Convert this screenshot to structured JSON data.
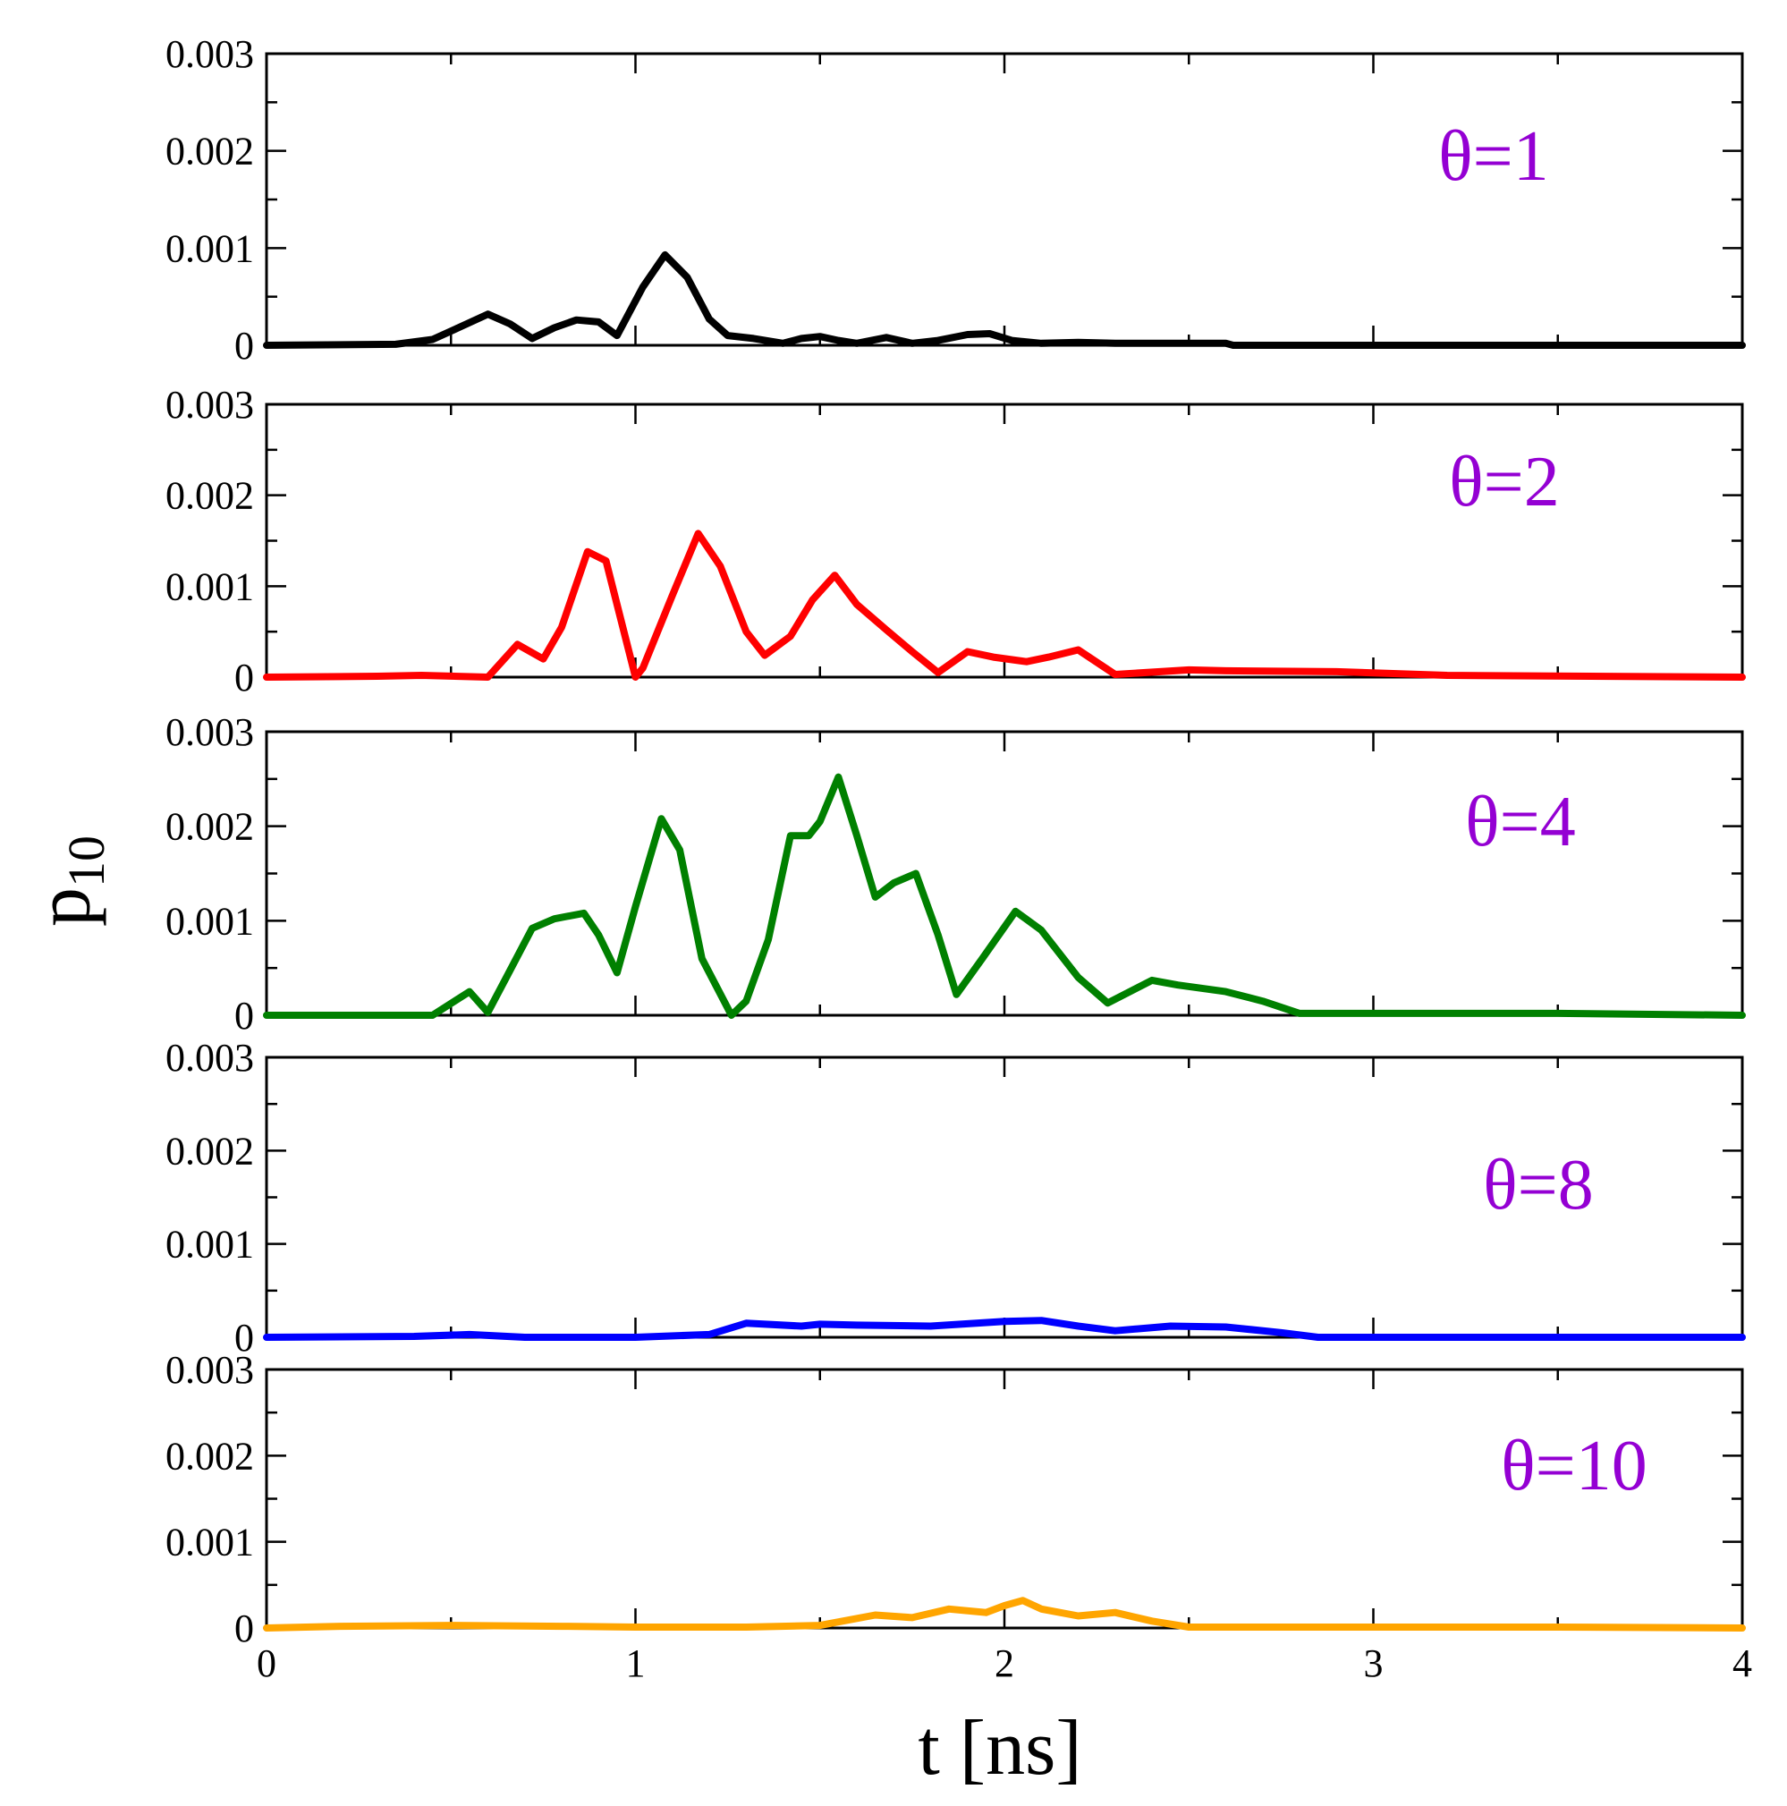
{
  "chart_data": {
    "type": "line",
    "layout": "stacked-panels",
    "xlabel": "t [ns]",
    "ylabel": "p",
    "ylabel_subscript": "10",
    "xlim": [
      0,
      4
    ],
    "x_ticks": [
      "0",
      "1",
      "2",
      "3",
      "4"
    ],
    "ylim": [
      0,
      0.003
    ],
    "y_ticks": [
      "0",
      "0.001",
      "0.002",
      "0.003"
    ],
    "label_color": "#9400d3",
    "panels": [
      {
        "label": "θ=1",
        "color": "#000000",
        "x": [
          0,
          0.35,
          0.45,
          0.52,
          0.6,
          0.66,
          0.72,
          0.78,
          0.84,
          0.9,
          0.95,
          1.02,
          1.08,
          1.14,
          1.2,
          1.25,
          1.32,
          1.4,
          1.45,
          1.5,
          1.55,
          1.6,
          1.68,
          1.75,
          1.82,
          1.9,
          1.96,
          2.02,
          2.1,
          2.2,
          2.3,
          2.6,
          2.62,
          4
        ],
        "y": [
          0,
          1e-05,
          6e-05,
          0.00018,
          0.00032,
          0.00022,
          7e-05,
          0.00018,
          0.00026,
          0.00024,
          0.0001,
          0.0006,
          0.00093,
          0.0007,
          0.00027,
          0.0001,
          7e-05,
          2e-05,
          7e-05,
          9e-05,
          5e-05,
          2e-05,
          8e-05,
          2e-05,
          5e-05,
          0.00011,
          0.00012,
          5e-05,
          2e-05,
          3e-05,
          2e-05,
          2e-05,
          0,
          0
        ]
      },
      {
        "label": "θ=2",
        "color": "#ff0000",
        "x": [
          0,
          0.3,
          0.42,
          0.6,
          0.68,
          0.75,
          0.8,
          0.87,
          0.92,
          1.0,
          1.02,
          1.1,
          1.17,
          1.23,
          1.3,
          1.35,
          1.42,
          1.48,
          1.54,
          1.6,
          1.68,
          1.75,
          1.82,
          1.9,
          1.97,
          2.06,
          2.12,
          2.2,
          2.3,
          2.5,
          2.6,
          2.9,
          3.2,
          4
        ],
        "y": [
          0,
          1e-05,
          2e-05,
          0,
          0.00036,
          0.0002,
          0.00055,
          0.00138,
          0.00128,
          0,
          0.0001,
          0.0009,
          0.00158,
          0.00122,
          0.0005,
          0.00024,
          0.00045,
          0.00085,
          0.00112,
          0.0008,
          0.00052,
          0.00028,
          5e-05,
          0.00028,
          0.00022,
          0.00017,
          0.00022,
          0.0003,
          3e-05,
          8e-05,
          7e-05,
          6e-05,
          2e-05,
          0
        ]
      },
      {
        "label": "θ=4",
        "color": "#008000",
        "x": [
          0,
          0.35,
          0.45,
          0.55,
          0.6,
          0.65,
          0.72,
          0.78,
          0.86,
          0.9,
          0.95,
          1.0,
          1.07,
          1.12,
          1.18,
          1.26,
          1.3,
          1.36,
          1.42,
          1.47,
          1.5,
          1.55,
          1.6,
          1.65,
          1.7,
          1.76,
          1.82,
          1.87,
          1.94,
          2.03,
          2.1,
          2.2,
          2.28,
          2.4,
          2.47,
          2.6,
          2.7,
          2.8,
          3.0,
          3.5,
          4
        ],
        "y": [
          0,
          0,
          0,
          0.00025,
          3e-05,
          0.0004,
          0.00092,
          0.00102,
          0.00108,
          0.00085,
          0.00045,
          0.00115,
          0.00208,
          0.00175,
          0.0006,
          0,
          0.00015,
          0.0008,
          0.0019,
          0.0019,
          0.00205,
          0.00252,
          0.0019,
          0.00125,
          0.0014,
          0.0015,
          0.00085,
          0.00022,
          0.0006,
          0.0011,
          0.0009,
          0.0004,
          0.00013,
          0.00037,
          0.00032,
          0.00025,
          0.00015,
          2e-05,
          2e-05,
          2e-05,
          0
        ]
      },
      {
        "label": "θ=8",
        "color": "#0000ff",
        "x": [
          0,
          0.4,
          0.55,
          0.7,
          1.0,
          1.2,
          1.3,
          1.45,
          1.5,
          1.6,
          1.8,
          2.0,
          2.1,
          2.2,
          2.3,
          2.45,
          2.6,
          2.75,
          2.85,
          4
        ],
        "y": [
          0,
          1e-05,
          3e-05,
          0,
          0,
          3e-05,
          0.00015,
          0.00012,
          0.00014,
          0.00013,
          0.00012,
          0.00017,
          0.00018,
          0.00012,
          7e-05,
          0.00012,
          0.00011,
          5e-05,
          0,
          0
        ]
      },
      {
        "label": "θ=10",
        "color": "#ffa500",
        "x": [
          0,
          0.2,
          0.5,
          0.8,
          1.0,
          1.3,
          1.5,
          1.65,
          1.75,
          1.85,
          1.95,
          2.0,
          2.05,
          2.1,
          2.2,
          2.3,
          2.4,
          2.5,
          3.5,
          4
        ],
        "y": [
          0,
          2e-05,
          3e-05,
          2e-05,
          1e-05,
          1e-05,
          3e-05,
          0.00015,
          0.00012,
          0.00022,
          0.00018,
          0.00026,
          0.00032,
          0.00022,
          0.00014,
          0.00018,
          8e-05,
          1e-05,
          1e-05,
          0
        ]
      }
    ]
  }
}
